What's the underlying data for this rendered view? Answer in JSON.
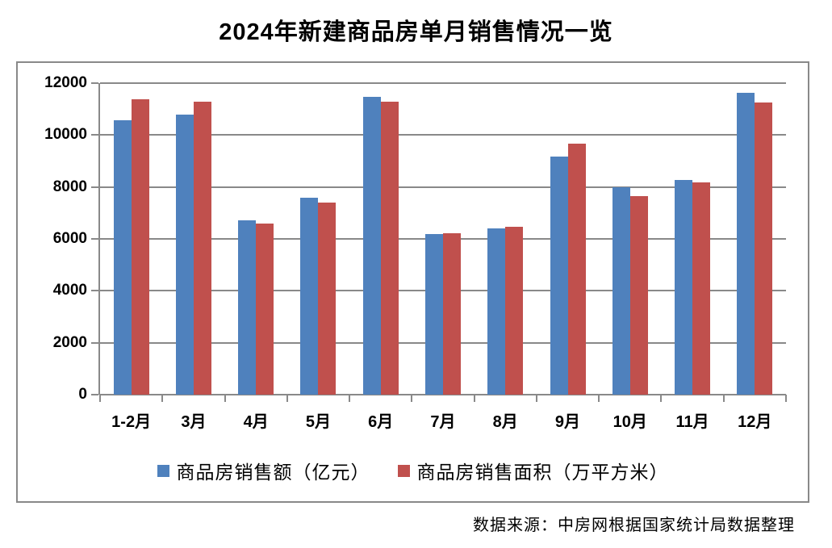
{
  "title": "2024年新建商品房单月销售情况一览",
  "source_note": "数据来源：中房网根据国家统计局数据整理",
  "colors": {
    "sales_series": "#4F81BD",
    "area_series": "#C0504D",
    "gridline": "#898989",
    "axis": "#898989",
    "frame_border": "#898989",
    "text": "#000000",
    "background": "#FFFFFF"
  },
  "chart_data": {
    "type": "bar",
    "title": "2024年新建商品房单月销售情况一览",
    "categories": [
      "1-2月",
      "3月",
      "4月",
      "5月",
      "6月",
      "7月",
      "8月",
      "9月",
      "10月",
      "11月",
      "12月"
    ],
    "series": [
      {
        "name": "商品房销售额（亿元）",
        "color": "#4F81BD",
        "values": [
          10566,
          10789,
          6712,
          7598,
          11468,
          6197,
          6393,
          9157,
          7975,
          8270,
          11625
        ]
      },
      {
        "name": "商品房销售面积（万平方米）",
        "color": "#C0504D",
        "values": [
          11369,
          11299,
          6584,
          7390,
          11274,
          6233,
          6453,
          9682,
          7646,
          8188,
          11267
        ]
      }
    ],
    "ylim": [
      0,
      12000
    ],
    "yticks": [
      0,
      2000,
      4000,
      6000,
      8000,
      10000,
      12000
    ],
    "grid": true,
    "legend_position": "bottom",
    "xlabel": "",
    "ylabel": ""
  }
}
